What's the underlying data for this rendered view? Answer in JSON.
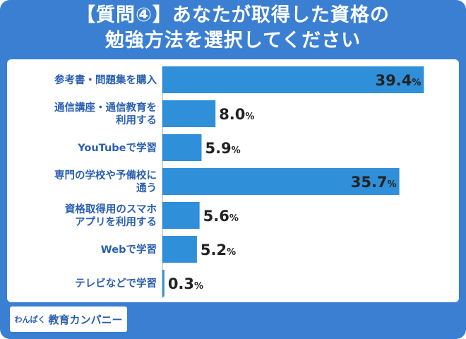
{
  "title_lines": [
    "【質問④】あなたが取得した資格の",
    "勉強方法を選択してください"
  ],
  "logo": {
    "prefix": "わんぱく",
    "text": "教育カンパニー"
  },
  "colors": {
    "frame": "#3b7fd3",
    "bar": "#2f8fd8",
    "label": "#2a5fb0"
  },
  "chart_data": {
    "type": "bar",
    "orientation": "horizontal",
    "categories": [
      [
        "参考書・問題集を購入"
      ],
      [
        "通信講座・通信教育を",
        "利用する"
      ],
      [
        "YouTubeで学習"
      ],
      [
        "専門の学校や予備校に",
        "通う"
      ],
      [
        "資格取得用のスマホ",
        "アプリを利用する"
      ],
      [
        "Webで学習"
      ],
      [
        "テレビなどで学習"
      ]
    ],
    "values": [
      39.4,
      8.0,
      5.9,
      35.7,
      5.6,
      5.2,
      0.3
    ],
    "value_labels": [
      "39.4",
      "8.0",
      "5.9",
      "35.7",
      "5.6",
      "5.2",
      "0.3"
    ],
    "unit": "%",
    "xlim": [
      0,
      40
    ]
  }
}
